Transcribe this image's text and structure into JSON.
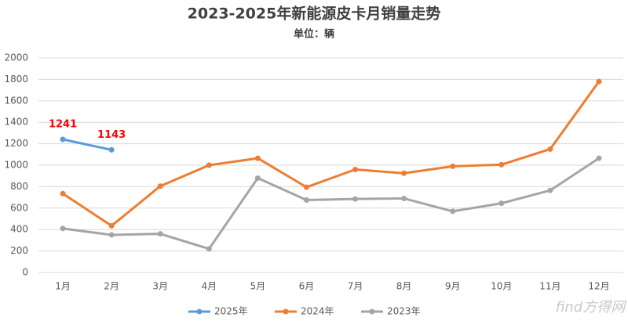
{
  "chart_data": {
    "type": "line",
    "title": "2023-2025年新能源皮卡月销量走势",
    "subtitle": "单位：辆",
    "watermark": "find方得网",
    "categories": [
      "1月",
      "2月",
      "3月",
      "4月",
      "5月",
      "6月",
      "7月",
      "8月",
      "9月",
      "10月",
      "11月",
      "12月"
    ],
    "series": [
      {
        "name": "2025年",
        "color": "#5b9bd5",
        "show_labels": true,
        "label_color": "#ff0000",
        "values": [
          1241,
          1143,
          null,
          null,
          null,
          null,
          null,
          null,
          null,
          null,
          null,
          null
        ]
      },
      {
        "name": "2024年",
        "color": "#ed7d31",
        "values": [
          735,
          435,
          805,
          1000,
          1065,
          795,
          960,
          925,
          990,
          1005,
          1150,
          1780
        ]
      },
      {
        "name": "2023年",
        "color": "#a5a5a5",
        "values": [
          410,
          350,
          360,
          220,
          880,
          675,
          685,
          690,
          570,
          645,
          765,
          1065
        ]
      }
    ],
    "ylim": [
      0,
      2000
    ],
    "yticks": [
      0,
      200,
      400,
      600,
      800,
      1000,
      1200,
      1400,
      1600,
      1800,
      2000
    ],
    "grid": true,
    "legend": "bottom"
  }
}
